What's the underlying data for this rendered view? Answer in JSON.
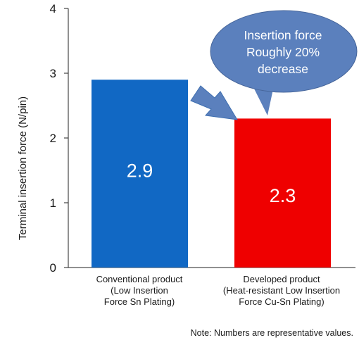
{
  "chart_data": {
    "type": "bar",
    "categories": [
      [
        "Conventional product",
        "(Low Insertion",
        "Force Sn Plating)"
      ],
      [
        "Developed product",
        "(Heat-resistant Low Insertion",
        "Force Cu-Sn Plating)"
      ]
    ],
    "values": [
      2.9,
      2.3
    ],
    "value_labels": [
      "2.9",
      "2.3"
    ],
    "bar_colors": [
      "#1168c4",
      "#ef0000"
    ],
    "ylabel": "Terminal insertion force (N/pin)",
    "ylim": [
      0,
      4
    ],
    "yticks": [
      0,
      1,
      2,
      3,
      4
    ],
    "grid": false,
    "annotation": {
      "lines": [
        "Insertion force",
        "Roughly 20%",
        "decrease"
      ],
      "color": "#5b80bd",
      "arrow_color": "#5b80bd"
    }
  },
  "note": "Note: Numbers are representative values."
}
